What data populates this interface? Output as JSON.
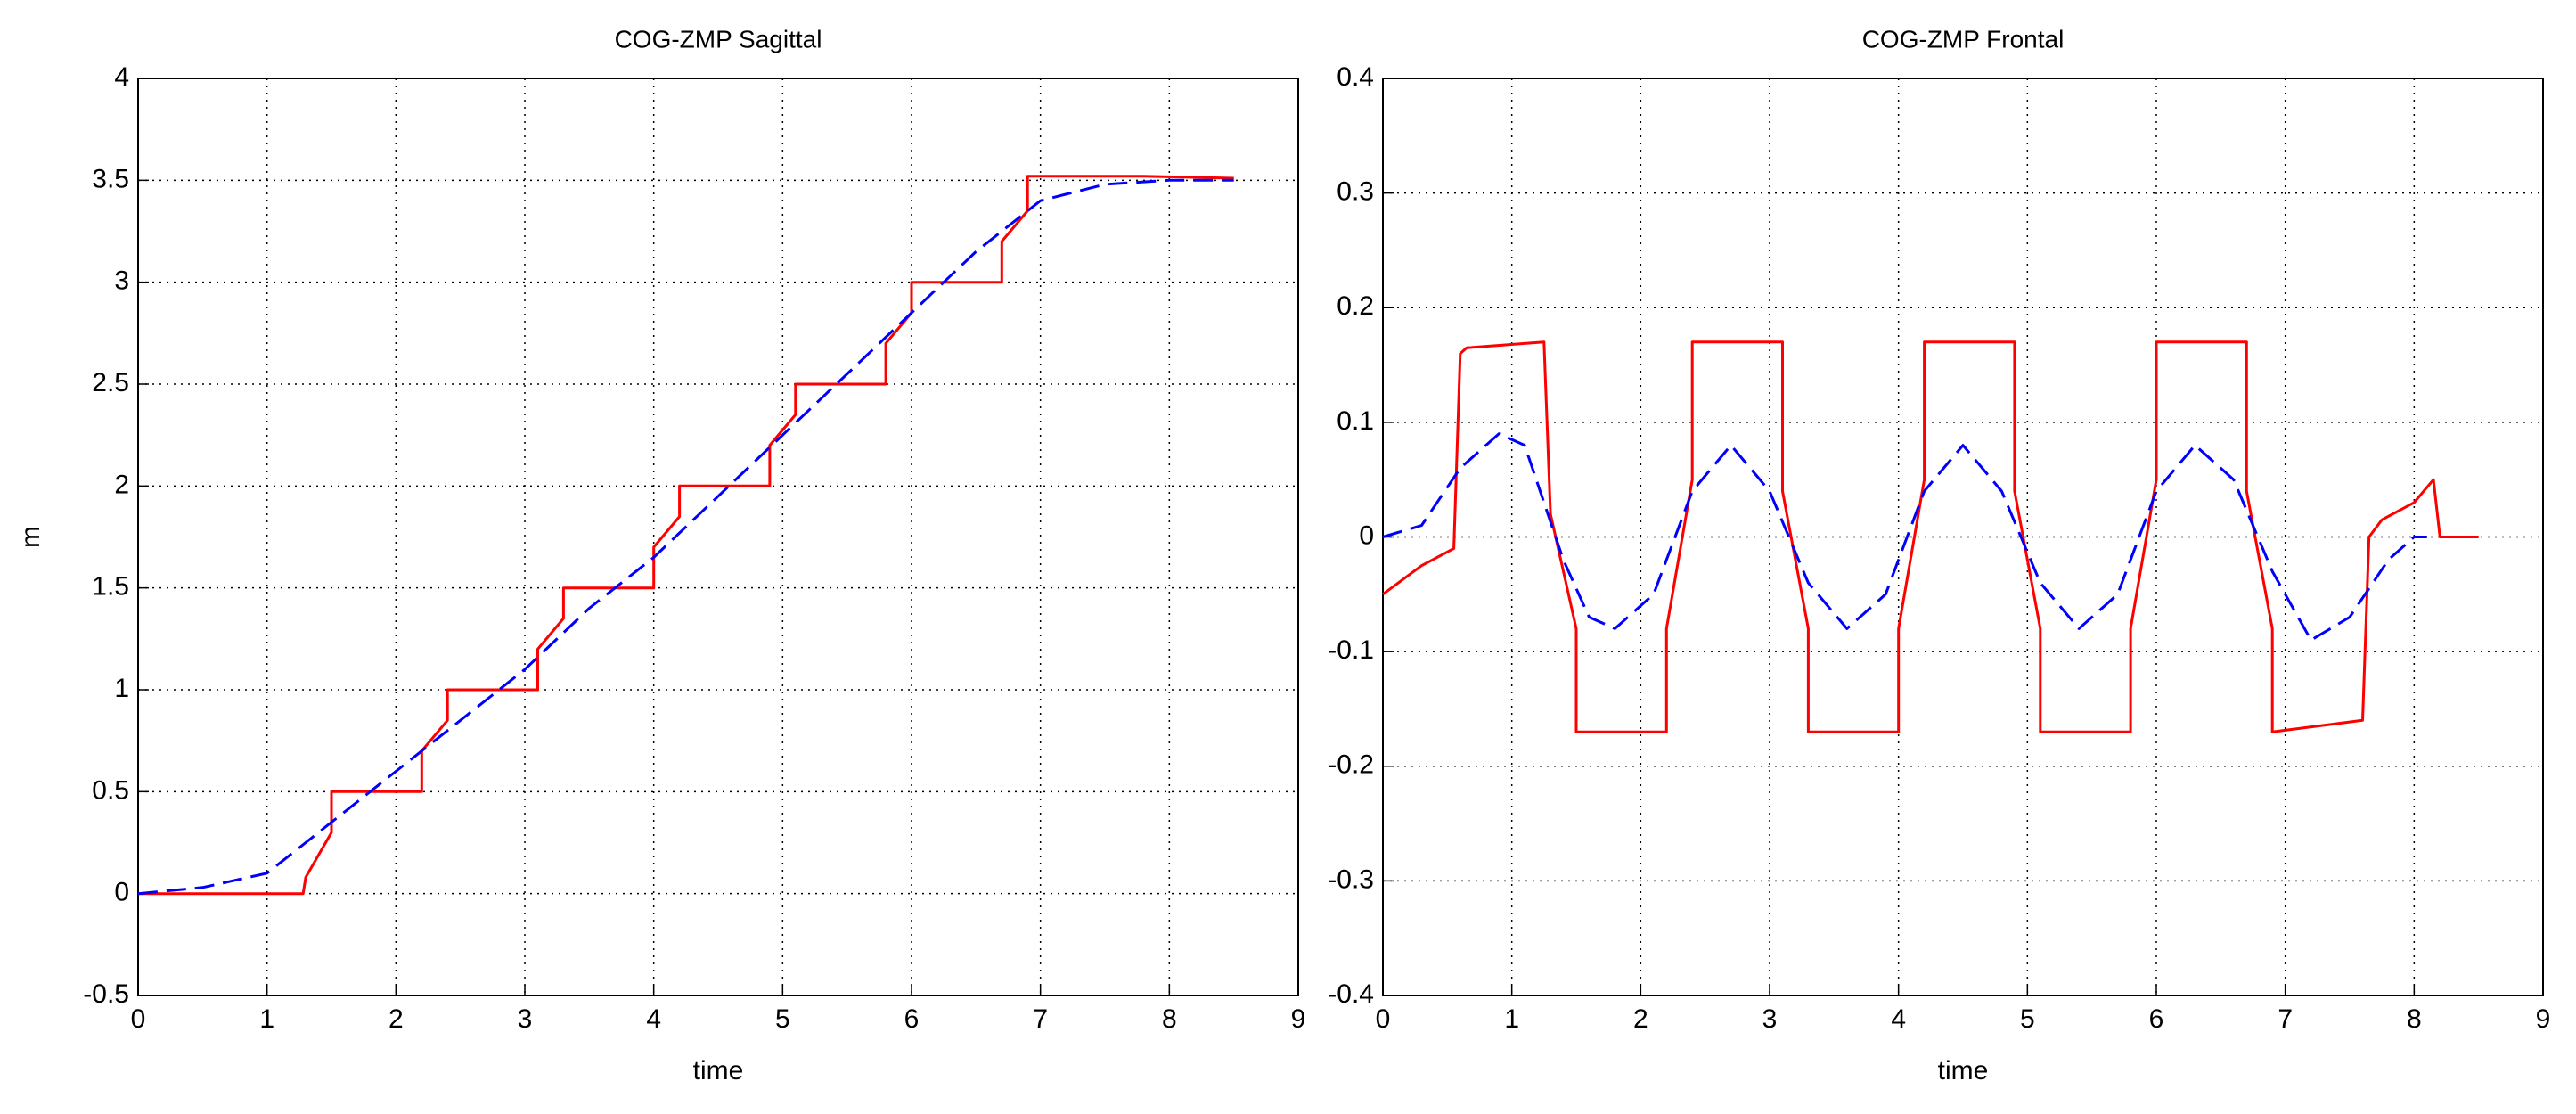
{
  "chart_data": [
    {
      "type": "line",
      "title": "COG-ZMP Sagittal",
      "xlabel": "time",
      "ylabel": "m",
      "xlim": [
        0,
        9
      ],
      "ylim": [
        -0.5,
        4
      ],
      "xticks": [
        0,
        1,
        2,
        3,
        4,
        5,
        6,
        7,
        8,
        9
      ],
      "yticks": [
        -0.5,
        0,
        0.5,
        1,
        1.5,
        2,
        2.5,
        3,
        3.5,
        4
      ],
      "grid": true,
      "series": [
        {
          "color": "#ff0000",
          "style": "solid",
          "x": [
            0,
            1.28,
            1.3,
            1.5,
            1.5,
            2.2,
            2.2,
            2.4,
            2.4,
            3.1,
            3.1,
            3.3,
            3.3,
            4.0,
            4.0,
            4.2,
            4.2,
            4.9,
            4.9,
            5.1,
            5.1,
            5.8,
            5.8,
            6.0,
            6.0,
            6.7,
            6.7,
            6.9,
            6.9,
            7.8,
            8.5
          ],
          "values": [
            0,
            0,
            0.08,
            0.3,
            0.5,
            0.5,
            0.7,
            0.85,
            1.0,
            1.0,
            1.2,
            1.35,
            1.5,
            1.5,
            1.7,
            1.85,
            2.0,
            2.0,
            2.2,
            2.35,
            2.5,
            2.5,
            2.7,
            2.85,
            3.0,
            3.0,
            3.2,
            3.35,
            3.52,
            3.52,
            3.51
          ]
        },
        {
          "color": "#0000ff",
          "style": "dashed",
          "x": [
            0,
            0.5,
            1,
            1.5,
            2,
            2.5,
            3,
            3.5,
            4,
            4.5,
            5,
            5.5,
            6,
            6.5,
            7,
            7.5,
            8,
            8.5
          ],
          "values": [
            0,
            0.03,
            0.1,
            0.35,
            0.6,
            0.85,
            1.1,
            1.4,
            1.65,
            1.95,
            2.25,
            2.55,
            2.85,
            3.15,
            3.4,
            3.48,
            3.5,
            3.5
          ]
        }
      ]
    },
    {
      "type": "line",
      "title": "COG-ZMP Frontal",
      "xlabel": "time",
      "xlim": [
        0,
        9
      ],
      "ylim": [
        -0.4,
        0.4
      ],
      "xticks": [
        0,
        1,
        2,
        3,
        4,
        5,
        6,
        7,
        8,
        9
      ],
      "yticks": [
        -0.4,
        -0.3,
        -0.2,
        -0.1,
        0,
        0.1,
        0.2,
        0.3,
        0.4
      ],
      "grid": true,
      "series": [
        {
          "color": "#ff0000",
          "style": "solid",
          "x": [
            0,
            0.3,
            0.55,
            0.6,
            0.65,
            1.25,
            1.3,
            1.5,
            1.5,
            2.2,
            2.2,
            2.4,
            2.4,
            3.1,
            3.1,
            3.3,
            3.3,
            4.0,
            4.0,
            4.2,
            4.2,
            4.9,
            4.9,
            5.1,
            5.1,
            5.8,
            5.8,
            6.0,
            6.0,
            6.7,
            6.7,
            6.9,
            6.9,
            7.6,
            7.65,
            7.75,
            8.0,
            8.15,
            8.2,
            8.5
          ],
          "values": [
            -0.05,
            -0.025,
            -0.01,
            0.16,
            0.165,
            0.17,
            0.02,
            -0.08,
            -0.17,
            -0.17,
            -0.08,
            0.05,
            0.17,
            0.17,
            0.04,
            -0.08,
            -0.17,
            -0.17,
            -0.08,
            0.05,
            0.17,
            0.17,
            0.04,
            -0.08,
            -0.17,
            -0.17,
            -0.08,
            0.05,
            0.17,
            0.17,
            0.04,
            -0.08,
            -0.17,
            -0.16,
            0.0,
            0.015,
            0.03,
            0.05,
            0.0,
            0.0
          ]
        },
        {
          "color": "#0000ff",
          "style": "dashed",
          "x": [
            0,
            0.3,
            0.6,
            0.9,
            1.1,
            1.4,
            1.6,
            1.8,
            2.1,
            2.4,
            2.7,
            3.0,
            3.3,
            3.6,
            3.9,
            4.2,
            4.5,
            4.8,
            5.1,
            5.4,
            5.7,
            6.0,
            6.3,
            6.6,
            6.9,
            7.2,
            7.5,
            7.8,
            8.0,
            8.1
          ],
          "values": [
            0,
            0.01,
            0.06,
            0.09,
            0.08,
            -0.02,
            -0.07,
            -0.08,
            -0.05,
            0.04,
            0.08,
            0.04,
            -0.04,
            -0.08,
            -0.05,
            0.04,
            0.08,
            0.04,
            -0.04,
            -0.08,
            -0.05,
            0.04,
            0.08,
            0.05,
            -0.03,
            -0.09,
            -0.07,
            -0.02,
            0.0,
            0.0
          ]
        }
      ]
    }
  ]
}
